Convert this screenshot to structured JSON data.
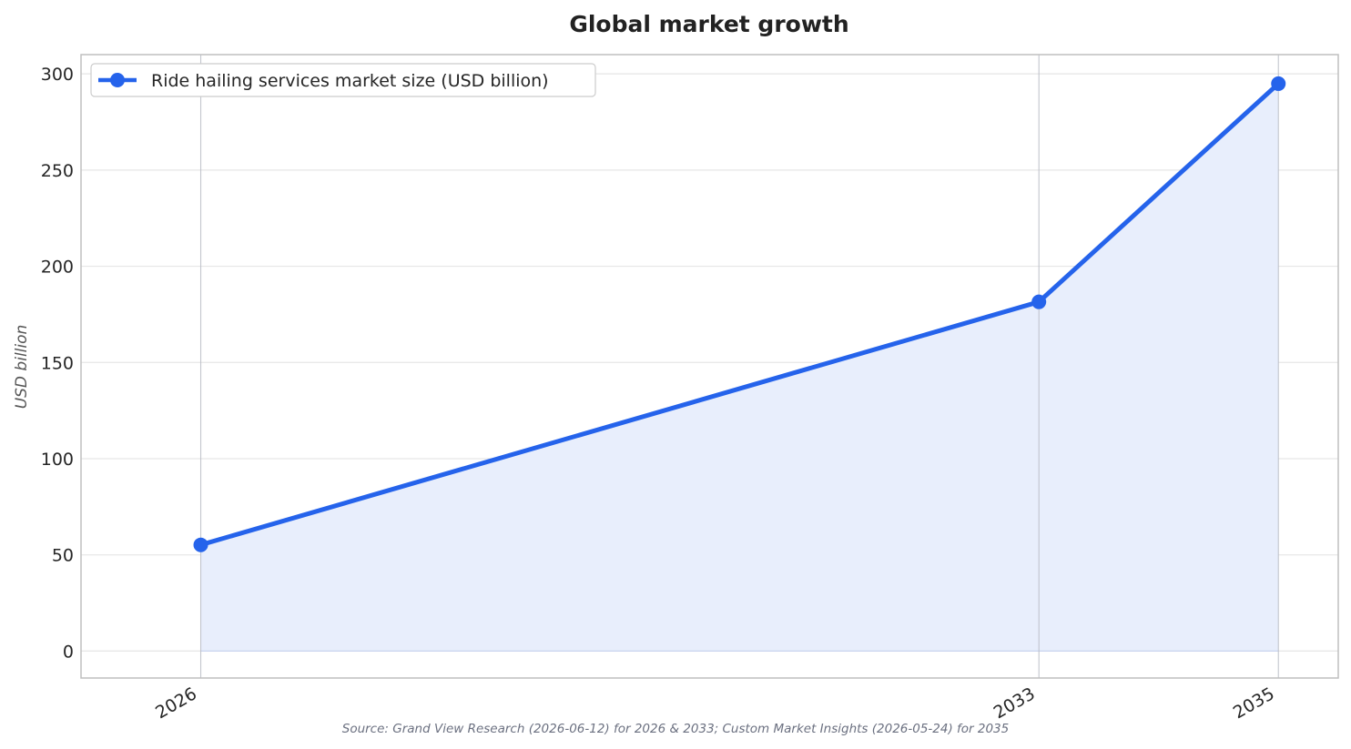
{
  "chart_data": {
    "type": "line",
    "title": "Global market growth",
    "xlabel": "",
    "ylabel": "USD billion",
    "x": [
      "2026",
      "2033",
      "2035"
    ],
    "x_numeric": [
      2026,
      2033,
      2035
    ],
    "series": [
      {
        "name": "Ride hailing services market size (USD billion)",
        "values": [
          55.2,
          181.5,
          294.9
        ]
      }
    ],
    "ylim": [
      -14,
      310
    ],
    "yticks": [
      0,
      50,
      100,
      150,
      200,
      250,
      300
    ],
    "grid": true,
    "area_fill": true,
    "legend": "top-left",
    "source": "Source: Grand View Research (2026-06-12) for 2026 & 2033; Custom Market Insights (2026-05-24) for 2035",
    "colors": {
      "line": "#2563eb",
      "fill": "#e8eefc",
      "grid": "#e6e6e6",
      "frame": "#bfbfbf"
    }
  }
}
